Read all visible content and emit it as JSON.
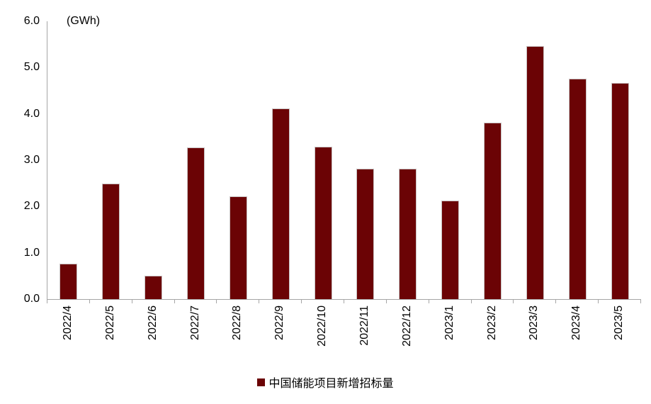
{
  "chart_data": {
    "type": "bar",
    "title": "",
    "unit_label": "(GWh)",
    "legend": "中国储能项目新增招标量",
    "legend_position": "bottom-center",
    "grid": false,
    "categories": [
      "2022/4",
      "2022/5",
      "2022/6",
      "2022/7",
      "2022/8",
      "2022/9",
      "2022/10",
      "2022/11",
      "2022/12",
      "2023/1",
      "2023/2",
      "2023/3",
      "2023/4",
      "2023/5"
    ],
    "values": [
      0.77,
      2.5,
      0.51,
      3.28,
      2.22,
      4.12,
      3.29,
      2.81,
      2.81,
      2.13,
      3.81,
      5.47,
      4.76,
      4.67
    ],
    "ylim": [
      0,
      6
    ],
    "ytick_step": 1.0,
    "ytick_labels": [
      "0.0",
      "1.0",
      "2.0",
      "3.0",
      "4.0",
      "5.0",
      "6.0"
    ],
    "xlabel": "",
    "ylabel": "(GWh)",
    "colors": {
      "bar": "#6B0305",
      "bar_border": "#C8C2C2",
      "axis": "#A6A6A6",
      "text": "#000000",
      "background": "#FFFFFF"
    }
  }
}
